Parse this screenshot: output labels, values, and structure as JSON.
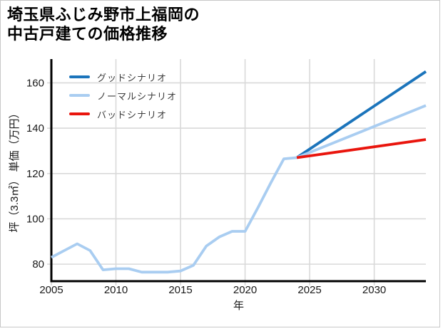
{
  "title": {
    "line1": "埼玉県ふじみ野市上福岡の",
    "line2": "中古戸建ての価格推移"
  },
  "chart_data": {
    "type": "line",
    "title": "埼玉県ふじみ野市上福岡の中古戸建ての価格推移",
    "xlabel": "年",
    "ylabel": "坪（3.3㎡） 単価（万円）",
    "xlim": [
      2005,
      2034
    ],
    "ylim": [
      72.5,
      170.5
    ],
    "xticks": [
      2005,
      2010,
      2015,
      2020,
      2025,
      2030
    ],
    "yticks": [
      80,
      100,
      120,
      140,
      160
    ],
    "grid": true,
    "legend_position": "top-left-inside",
    "colors": {
      "good": "#1b74bb",
      "normal": "#a9cdf1",
      "bad": "#e9150d",
      "grid": "#d9d9d9",
      "spine": "#000000",
      "tick_label": "#1a1a1a",
      "legend_text": "#3d3d3d",
      "border": "#c8c8c8"
    },
    "series": [
      {
        "key": "history",
        "label": "",
        "show_in_legend": false,
        "color": "#a9cdf1",
        "x": [
          2005,
          2006,
          2007,
          2008,
          2009,
          2010,
          2011,
          2012,
          2013,
          2014,
          2015,
          2016,
          2017,
          2018,
          2019,
          2020,
          2021,
          2022,
          2023,
          2024
        ],
        "y": [
          83,
          86,
          89,
          86,
          77.5,
          78,
          78,
          76.5,
          76.5,
          76.5,
          77,
          79.5,
          88,
          92,
          94.5,
          94.5,
          105,
          116,
          126.5,
          127
        ]
      },
      {
        "key": "good",
        "label": "グッドシナリオ",
        "show_in_legend": true,
        "color": "#1b74bb",
        "x": [
          2024,
          2034
        ],
        "y": [
          127,
          165
        ]
      },
      {
        "key": "normal",
        "label": "ノーマルシナリオ",
        "show_in_legend": true,
        "color": "#a9cdf1",
        "x": [
          2024,
          2034
        ],
        "y": [
          127,
          150
        ]
      },
      {
        "key": "bad",
        "label": "バッドシナリオ",
        "show_in_legend": true,
        "color": "#e9150d",
        "x": [
          2024,
          2034
        ],
        "y": [
          127,
          135
        ]
      }
    ]
  }
}
